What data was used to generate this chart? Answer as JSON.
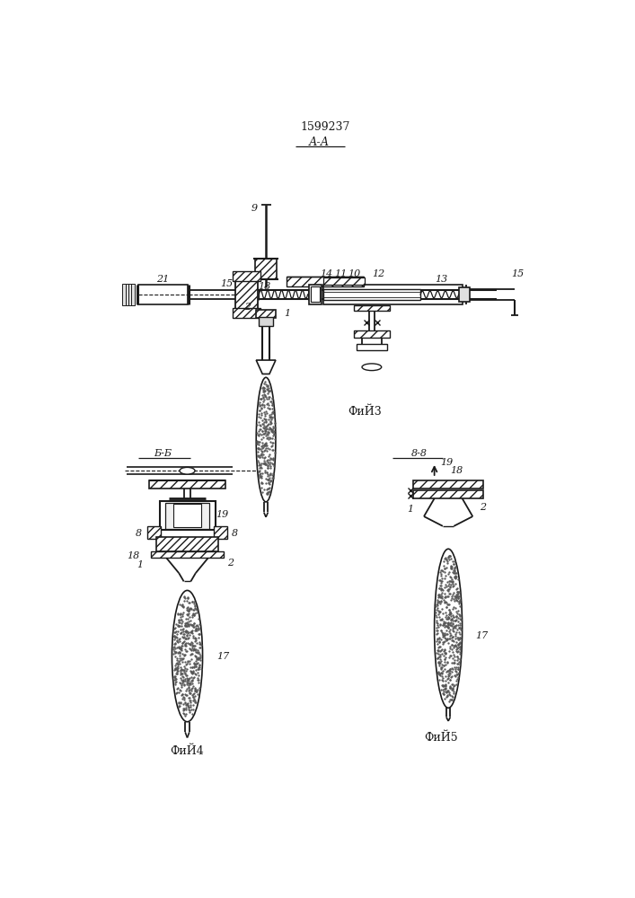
{
  "title": "1599237",
  "bg_color": "#ffffff",
  "lc": "#1a1a1a",
  "fig3_caption": "ФиЙ3",
  "fig4_caption": "ФиЙ4",
  "fig5_caption": "ФиЙ5",
  "fig3_aa": "А-А",
  "fig4_bb": "Б-Б",
  "fig5_vv": "8-8"
}
